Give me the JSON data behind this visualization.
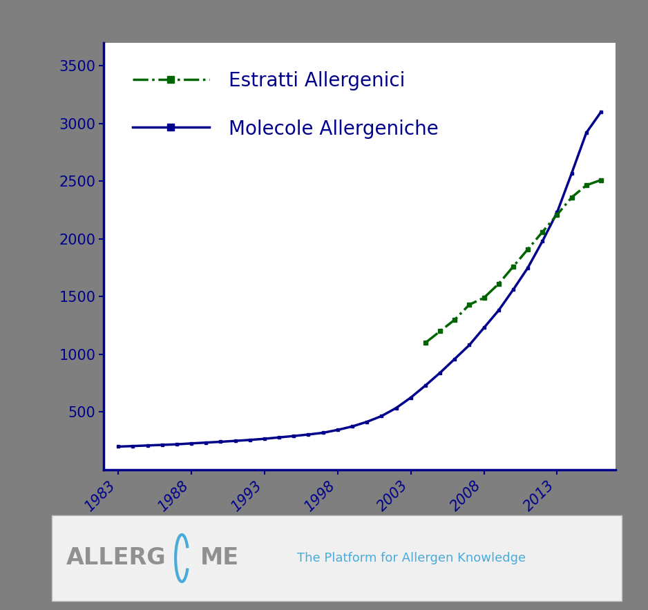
{
  "background_color": "#7f7f7f",
  "plot_bg_color": "#ffffff",
  "axis_color": "#00008B",
  "tick_label_color": "#00008B",
  "legend_text_color": "#00008B",
  "line1_label": "Estratti Allergenici",
  "line1_color": "#006400",
  "line1_style": "-.",
  "line1_marker": "s",
  "line1_markersize": 4,
  "line1_linewidth": 2.5,
  "line2_label": "Molecole Allergeniche",
  "line2_color": "#00008B",
  "line2_style": "-",
  "line2_marker": "s",
  "line2_markersize": 2.5,
  "line2_linewidth": 2.5,
  "xticks": [
    1983,
    1988,
    1993,
    1998,
    2003,
    2008,
    2013
  ],
  "xlim": [
    1982,
    2017
  ],
  "ylim": [
    0,
    3700
  ],
  "yticks": [
    500,
    1000,
    1500,
    2000,
    2500,
    3000,
    3500
  ],
  "tick_fontsize": 15,
  "legend_fontsize": 20,
  "molecole_years": [
    1983,
    1984,
    1985,
    1986,
    1987,
    1988,
    1989,
    1990,
    1991,
    1992,
    1993,
    1994,
    1995,
    1996,
    1997,
    1998,
    1999,
    2000,
    2001,
    2002,
    2003,
    2004,
    2005,
    2006,
    2007,
    2008,
    2009,
    2010,
    2011,
    2012,
    2013,
    2014,
    2015,
    2016
  ],
  "molecole_values": [
    200,
    205,
    210,
    215,
    220,
    228,
    235,
    242,
    250,
    258,
    268,
    280,
    292,
    305,
    320,
    345,
    375,
    415,
    465,
    535,
    625,
    730,
    840,
    960,
    1080,
    1230,
    1380,
    1560,
    1750,
    1980,
    2230,
    2570,
    2920,
    3100
  ],
  "estratti_years": [
    2004,
    2005,
    2006,
    2007,
    2008,
    2009,
    2010,
    2011,
    2012,
    2013,
    2014,
    2015,
    2016
  ],
  "estratti_values": [
    1100,
    1200,
    1300,
    1430,
    1490,
    1610,
    1760,
    1910,
    2060,
    2210,
    2360,
    2465,
    2510
  ],
  "footer_tagline": "The Platform for Allergen Knowledge",
  "footer_text_color": "#4aabdb",
  "footer_bg": "#f0f0f0"
}
